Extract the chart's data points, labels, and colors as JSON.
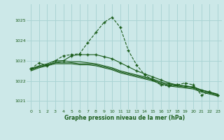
{
  "title": "Graphe pression niveau de la mer (hPa)",
  "background_color": "#cce8e8",
  "grid_color": "#aad4d4",
  "line_color": "#1a5c1a",
  "xlim": [
    -0.5,
    23.5
  ],
  "ylim": [
    1020.6,
    1025.8
  ],
  "yticks": [
    1021,
    1022,
    1023,
    1024,
    1025
  ],
  "xticks": [
    0,
    1,
    2,
    3,
    4,
    5,
    6,
    7,
    8,
    9,
    10,
    11,
    12,
    13,
    14,
    15,
    16,
    17,
    18,
    19,
    20,
    21,
    22,
    23
  ],
  "series": [
    {
      "x": [
        0,
        1,
        2,
        3,
        4,
        5,
        6,
        7,
        8,
        9,
        10,
        11,
        12,
        13,
        14,
        15,
        16,
        17,
        18,
        19,
        20,
        21,
        22,
        23
      ],
      "y": [
        1022.6,
        1022.9,
        1022.75,
        1023.0,
        1023.25,
        1023.3,
        1023.35,
        1023.9,
        1024.4,
        1024.9,
        1025.15,
        1024.65,
        1023.5,
        1022.8,
        1022.3,
        1022.05,
        1021.8,
        1021.75,
        1021.8,
        1021.9,
        1021.8,
        1021.3,
        1021.45,
        1021.3
      ],
      "linestyle": "--",
      "has_markers": true
    },
    {
      "x": [
        0,
        1,
        2,
        3,
        4,
        5,
        6,
        7,
        8,
        9,
        10,
        11,
        12,
        13,
        14,
        15,
        16,
        17,
        18,
        19,
        20,
        21,
        22,
        23
      ],
      "y": [
        1022.6,
        1022.75,
        1022.85,
        1023.0,
        1023.0,
        1022.95,
        1022.95,
        1022.9,
        1022.85,
        1022.75,
        1022.65,
        1022.5,
        1022.4,
        1022.3,
        1022.2,
        1022.1,
        1021.95,
        1021.85,
        1021.8,
        1021.75,
        1021.7,
        1021.55,
        1021.45,
        1021.35
      ],
      "linestyle": "-",
      "has_markers": false
    },
    {
      "x": [
        0,
        1,
        2,
        3,
        4,
        5,
        6,
        7,
        8,
        9,
        10,
        11,
        12,
        13,
        14,
        15,
        16,
        17,
        18,
        19,
        20,
        21,
        22,
        23
      ],
      "y": [
        1022.55,
        1022.7,
        1022.8,
        1022.9,
        1022.9,
        1022.9,
        1022.85,
        1022.85,
        1022.8,
        1022.7,
        1022.6,
        1022.45,
        1022.35,
        1022.25,
        1022.15,
        1022.05,
        1021.9,
        1021.8,
        1021.75,
        1021.7,
        1021.65,
        1021.5,
        1021.4,
        1021.3
      ],
      "linestyle": "-",
      "has_markers": false
    },
    {
      "x": [
        0,
        1,
        2,
        3,
        4,
        5,
        6,
        7,
        8,
        9,
        10,
        11,
        12,
        13,
        14,
        15,
        16,
        17,
        18,
        19,
        20,
        21,
        22,
        23
      ],
      "y": [
        1022.5,
        1022.65,
        1022.75,
        1022.85,
        1022.85,
        1022.85,
        1022.8,
        1022.8,
        1022.75,
        1022.65,
        1022.55,
        1022.4,
        1022.3,
        1022.2,
        1022.1,
        1022.0,
        1021.85,
        1021.75,
        1021.7,
        1021.65,
        1021.6,
        1021.45,
        1021.35,
        1021.25
      ],
      "linestyle": "-",
      "has_markers": false
    },
    {
      "x": [
        0,
        2,
        4,
        5,
        6,
        7,
        8,
        9,
        10,
        11,
        12,
        13,
        14,
        15,
        16,
        17,
        18,
        19,
        20,
        21,
        22,
        23
      ],
      "y": [
        1022.6,
        1022.8,
        1023.0,
        1023.25,
        1023.3,
        1023.3,
        1023.3,
        1023.2,
        1023.1,
        1022.9,
        1022.7,
        1022.5,
        1022.35,
        1022.2,
        1022.05,
        1021.9,
        1021.8,
        1021.75,
        1021.7,
        1021.55,
        1021.45,
        1021.3
      ],
      "linestyle": "-",
      "has_markers": true
    }
  ]
}
